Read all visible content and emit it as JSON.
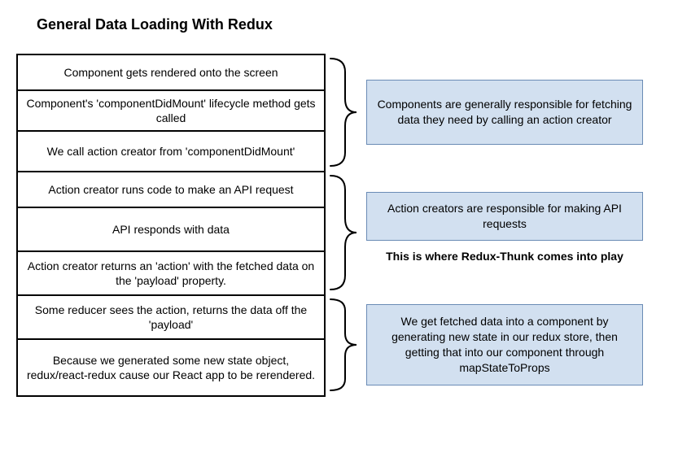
{
  "title": "General Data Loading With Redux",
  "steps": [
    {
      "text": "Component gets rendered onto the screen",
      "height": 44
    },
    {
      "text": "Component's 'componentDidMount' lifecycle method gets called",
      "height": 50
    },
    {
      "text": "We call action creator from 'componentDidMount'",
      "height": 50
    },
    {
      "text": "Action creator runs code to make an API request",
      "height": 44
    },
    {
      "text": "API responds with data",
      "height": 54
    },
    {
      "text": "Action creator returns an 'action' with the fetched data on the 'payload' property.",
      "height": 54
    },
    {
      "text": "Some reducer sees the action, returns the data off the 'payload'",
      "height": 54
    },
    {
      "text": "Because we generated some new state object, redux/react-redux cause our React app to be rerendered.",
      "height": 70
    }
  ],
  "groups": [
    {
      "start": 0,
      "end": 2,
      "callout": "Components are generally responsible for fetching data they need by calling an action creator",
      "callout_height": 80
    },
    {
      "start": 3,
      "end": 5,
      "callout": "Action creators are responsible for making API requests",
      "callout_height": 60,
      "note": "This is where Redux-Thunk comes into play"
    },
    {
      "start": 6,
      "end": 7,
      "callout": "We get fetched data into a component by generating new state in our redux store, then getting that into our component through mapStateToProps",
      "callout_height": 100
    }
  ],
  "colors": {
    "callout_bg": "#d2e0f0",
    "callout_border": "#6a8bb5",
    "step_border": "#000000",
    "brace_stroke": "#000000",
    "background": "#ffffff"
  },
  "fonts": {
    "title_size": 18,
    "body_size": 14
  },
  "layout": {
    "left_width": 380,
    "brace_width": 50,
    "right_width": 340
  }
}
